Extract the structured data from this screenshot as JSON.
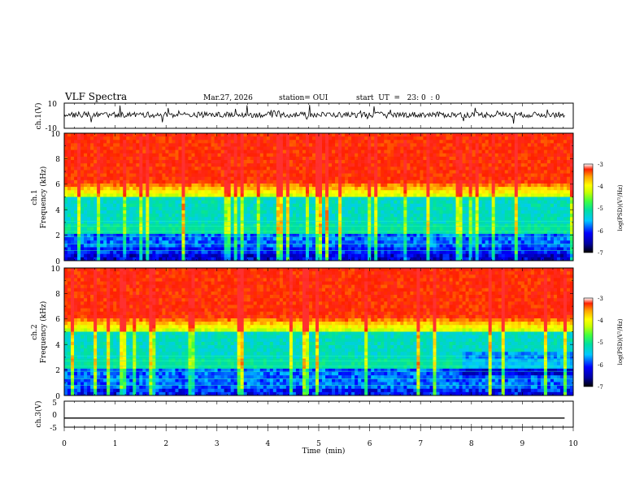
{
  "header": {
    "title": "VLF Spectra",
    "date": "Mar.27, 2026",
    "station": "station= OUI",
    "start": "start  UT  =   23: 0  : 0"
  },
  "chart_data": [
    {
      "type": "line",
      "panel": "ch1-waveform",
      "ylabel": "ch.1(V)",
      "ylim": [
        -10,
        10
      ],
      "yticks": [
        "10",
        "-10"
      ],
      "xlim": [
        0,
        10
      ]
    },
    {
      "type": "heatmap",
      "panel": "ch1-spectrogram",
      "ylabel_lines": [
        "ch.1",
        "Frequency  (kHz)"
      ],
      "ylim": [
        0,
        10
      ],
      "yticks": [
        "10",
        "8",
        "6",
        "4",
        "2",
        "0"
      ],
      "colorbar": {
        "label": "log(PSD)(V²/Hz)",
        "range": [
          -7,
          -3
        ],
        "ticks": [
          "-3",
          "-4",
          "-5",
          "-6",
          "-7"
        ]
      }
    },
    {
      "type": "heatmap",
      "panel": "ch2-spectrogram",
      "ylabel_lines": [
        "ch.2",
        "Frequency  (kHz)"
      ],
      "ylim": [
        0,
        10
      ],
      "yticks": [
        "10",
        "8",
        "6",
        "4",
        "2",
        "0"
      ],
      "colorbar": {
        "label": "log(PSD)(V²/Hz)",
        "range": [
          -7,
          -3
        ],
        "ticks": [
          "-3",
          "-4",
          "-5",
          "-6",
          "-7"
        ]
      }
    },
    {
      "type": "line",
      "panel": "ch3-waveform",
      "ylabel": "ch.3(V)",
      "ylim": [
        -5,
        5
      ],
      "yticks": [
        "5",
        "0",
        "-5"
      ],
      "value": -1.5,
      "xlim": [
        0,
        10
      ],
      "xlabel": "Time  (min)",
      "xticks": [
        "0",
        "1",
        "2",
        "3",
        "4",
        "5",
        "6",
        "7",
        "8",
        "9",
        "10"
      ]
    }
  ]
}
